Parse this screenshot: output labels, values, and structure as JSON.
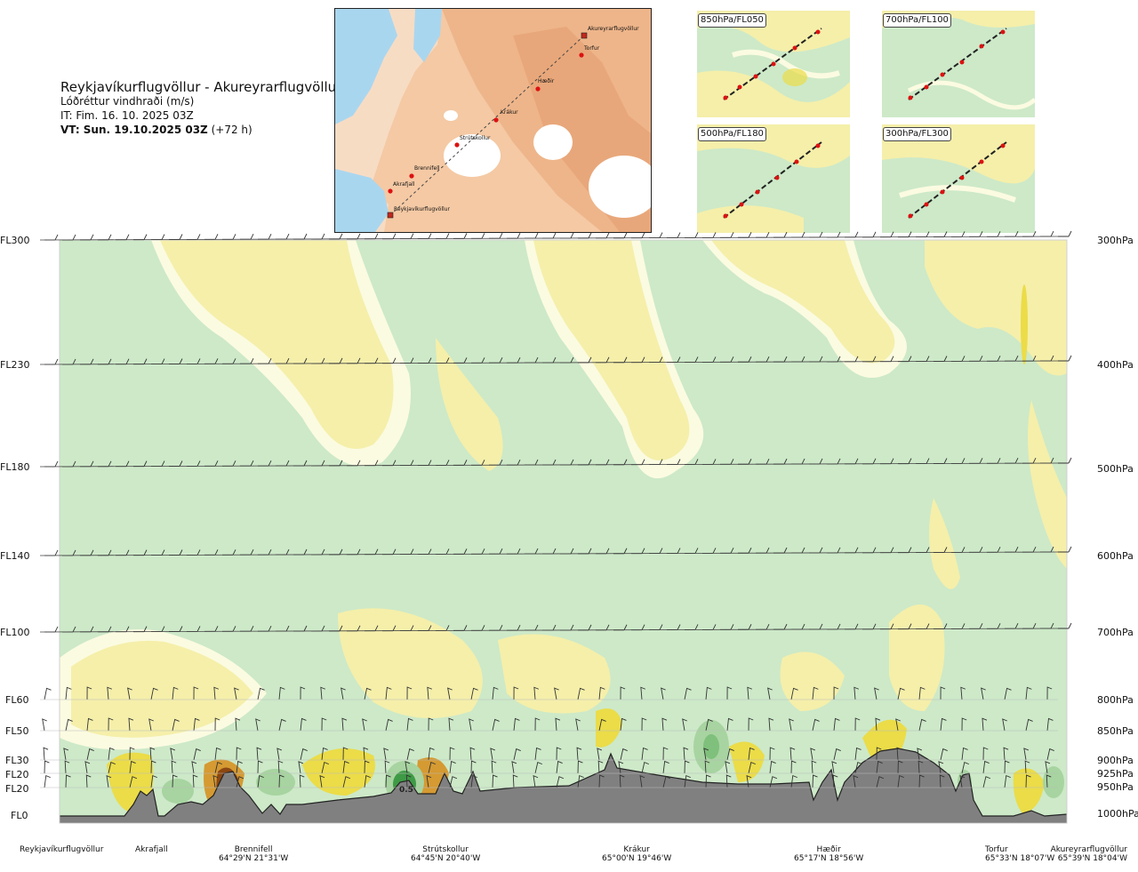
{
  "header": {
    "title": "Reykjavíkurflugvöllur - Akureyrarflugvöllur",
    "subtitle": "Lóðréttur vindhraði (m/s)",
    "issue_time": "IT: Fim. 16. 10. 2025 03Z",
    "valid_prefix": "VT: Sun. 19.10.2025 03Z",
    "valid_suffix": "(+72 h)"
  },
  "route_map": {
    "waypoints": [
      "Akureyrarflugvöllur",
      "Torfur",
      "Hæðir",
      "Krákur",
      "Strútskollur",
      "Brennifell",
      "Akrafjall",
      "Reykjavíkurflugvöllur"
    ]
  },
  "level_panels": [
    {
      "label": "850hPa/FL050"
    },
    {
      "label": "700hPa/FL100"
    },
    {
      "label": "500hPa/FL180"
    },
    {
      "label": "300hPa/FL300"
    }
  ],
  "colors": {
    "green_light": "#cde9c8",
    "green_mid": "#a7d4a0",
    "green_dark": "#3f9a46",
    "cream": "#fbfbe1",
    "yellow_light": "#f5efaa",
    "yellow_mid": "#ebdc48",
    "orange": "#d59a32",
    "brown": "#8c4712",
    "terrain": "#808080"
  },
  "chart_data": {
    "type": "heatmap",
    "title": "Lóðréttur vindhraði (m/s)",
    "y_levels_fl": [
      "FL300",
      "FL230",
      "FL180",
      "FL140",
      "FL100",
      "FL60",
      "FL50",
      "FL30",
      "FL20",
      "FL20",
      "FL0"
    ],
    "y_levels_hpa": [
      "300hPa",
      "400hPa",
      "500hPa",
      "600hPa",
      "700hPa",
      "800hPa",
      "850hPa",
      "900hPa",
      "925hPa",
      "950hPa",
      "1000hPa"
    ],
    "annotation": "0.5",
    "x_stations": [
      {
        "name": "Reykjavíkurflugvöllur",
        "coord": ""
      },
      {
        "name": "Akrafjall",
        "coord": ""
      },
      {
        "name": "Brennifell",
        "coord": "64°29'N 21°31'W"
      },
      {
        "name": "Strútskollur",
        "coord": "64°45'N 20°40'W"
      },
      {
        "name": "Krákur",
        "coord": "65°00'N 19°46'W"
      },
      {
        "name": "Hæðir",
        "coord": "65°17'N 18°56'W"
      },
      {
        "name": "Torfur",
        "coord": "65°33'N 18°07'W"
      },
      {
        "name": "Akureyrarflugvöllur",
        "coord": "65°39'N 18°04'W"
      }
    ]
  }
}
